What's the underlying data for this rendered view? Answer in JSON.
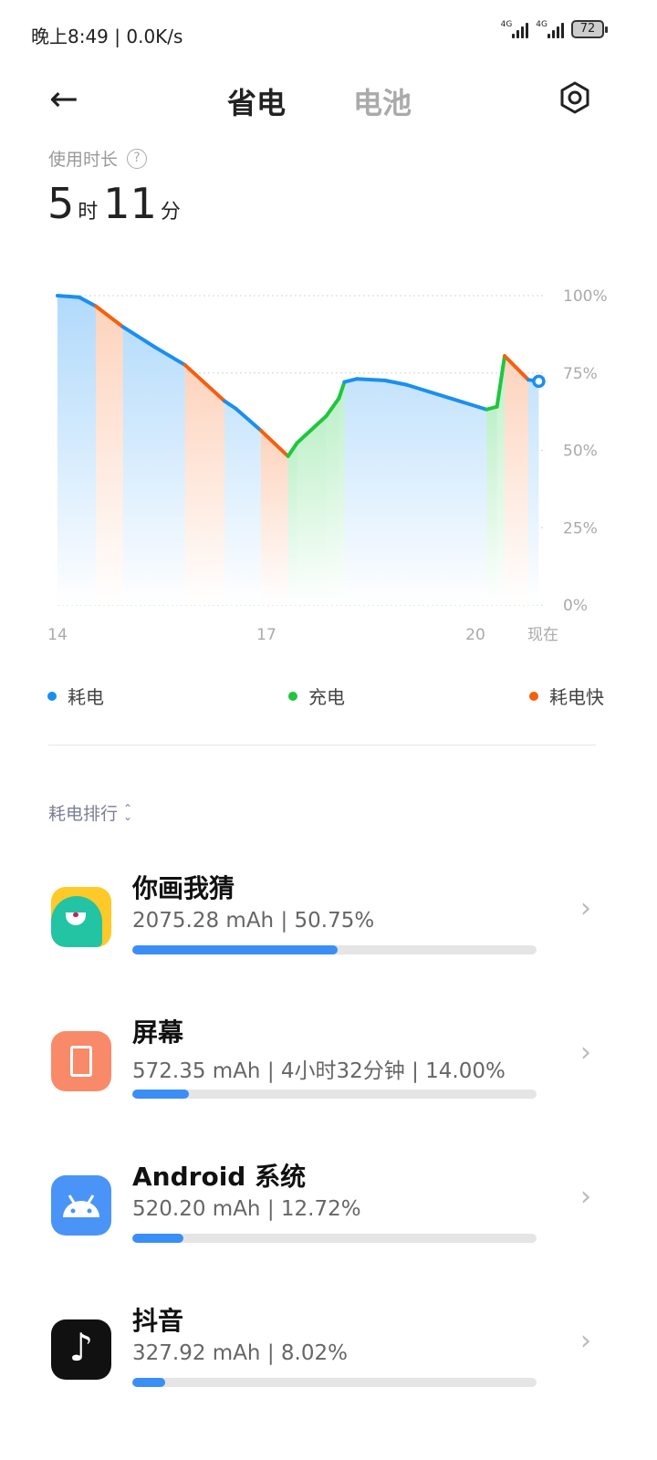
{
  "status_bar": {
    "time_speed": "晚上8:49 | 0.0K/s",
    "network1": "4G",
    "network2": "4G",
    "battery": "72"
  },
  "header": {
    "tab_active": "省电",
    "tab_inactive": "电池",
    "back_icon": "arrow-left-icon",
    "settings_icon": "hexagon-gear-icon"
  },
  "usage": {
    "label": "使用时长",
    "hours": "5",
    "hours_unit": "时",
    "minutes": "11",
    "minutes_unit": "分"
  },
  "colors": {
    "drain": "#1a8ff0",
    "charge": "#1fc63e",
    "fast": "#f4600e"
  },
  "chart_data": {
    "type": "line",
    "x_ticks": [
      {
        "value": 14,
        "label": "14"
      },
      {
        "value": 17,
        "label": "17"
      },
      {
        "value": 20,
        "label": "20"
      },
      {
        "value": 20.97,
        "label": "现在"
      }
    ],
    "y_ticks": [
      {
        "value": 100,
        "label": "100%"
      },
      {
        "value": 75,
        "label": "75%"
      },
      {
        "value": 50,
        "label": "50%"
      },
      {
        "value": 25,
        "label": "25%"
      },
      {
        "value": 0,
        "label": "0%"
      }
    ],
    "xlim": [
      14,
      20.97
    ],
    "ylim": [
      0,
      100
    ],
    "grid": true,
    "legend_position": "bottom",
    "points": [
      {
        "t": 14.0,
        "p": 100,
        "seg": "drain"
      },
      {
        "t": 14.31,
        "p": 99.5,
        "seg": "drain"
      },
      {
        "t": 14.55,
        "p": 96.6,
        "seg": "fast"
      },
      {
        "t": 14.94,
        "p": 89.9,
        "seg": "drain"
      },
      {
        "t": 15.41,
        "p": 83.2,
        "seg": "drain"
      },
      {
        "t": 15.83,
        "p": 77.6,
        "seg": "fast"
      },
      {
        "t": 16.4,
        "p": 65.9,
        "seg": "drain"
      },
      {
        "t": 16.56,
        "p": 63.5,
        "seg": "drain"
      },
      {
        "t": 16.92,
        "p": 56.4,
        "seg": "fast"
      },
      {
        "t": 17.31,
        "p": 48.1,
        "seg": "charge"
      },
      {
        "t": 17.44,
        "p": 52.4,
        "seg": "charge"
      },
      {
        "t": 17.86,
        "p": 61.1,
        "seg": "charge"
      },
      {
        "t": 18.04,
        "p": 66.8,
        "seg": "charge"
      },
      {
        "t": 18.12,
        "p": 72.1,
        "seg": "drain"
      },
      {
        "t": 18.3,
        "p": 73.1,
        "seg": "drain"
      },
      {
        "t": 18.7,
        "p": 72.6,
        "seg": "drain"
      },
      {
        "t": 19.01,
        "p": 71.2,
        "seg": "drain"
      },
      {
        "t": 20.16,
        "p": 63.2,
        "seg": "charge"
      },
      {
        "t": 20.31,
        "p": 64.1,
        "seg": "charge"
      },
      {
        "t": 20.42,
        "p": 80.5,
        "seg": "fast"
      },
      {
        "t": 20.76,
        "p": 72.8,
        "seg": "drain"
      },
      {
        "t": 20.91,
        "p": 72.3,
        "seg": "end"
      }
    ]
  },
  "legend": [
    {
      "label": "耗电",
      "key": "drain"
    },
    {
      "label": "充电",
      "key": "charge"
    },
    {
      "label": "耗电快",
      "key": "fast"
    }
  ],
  "ranking": {
    "label": "耗电排行",
    "sort_icon": "sort-chevrons-icon"
  },
  "apps": [
    {
      "name": "你画我猜",
      "detail": "2075.28 mAh | 50.75%",
      "percent": 50.75
    },
    {
      "name": "屏幕",
      "detail": "572.35 mAh | 4小时32分钟 | 14.00%",
      "percent": 14.0
    },
    {
      "name": "Android 系统",
      "detail": "520.20 mAh | 12.72%",
      "percent": 12.72
    },
    {
      "name": "抖音",
      "detail": "327.92 mAh | 8.02%",
      "percent": 8.02
    }
  ]
}
